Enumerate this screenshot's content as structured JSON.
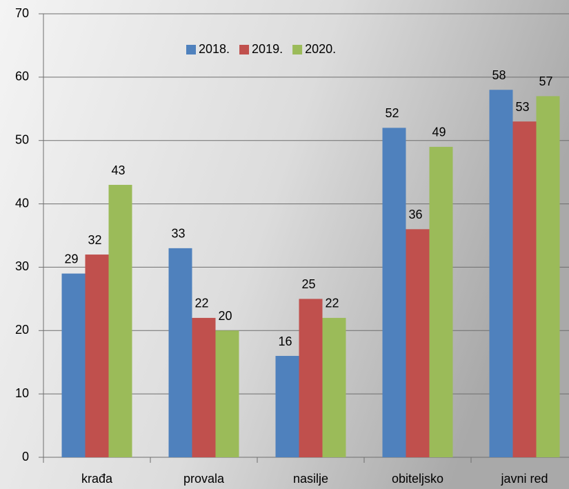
{
  "chart_data": {
    "type": "bar",
    "categories": [
      "krađa",
      "provala",
      "nasilje",
      "obiteljsko",
      "javni red"
    ],
    "series": [
      {
        "name": "2018.",
        "color": "#4f81bd",
        "values": [
          29,
          33,
          16,
          52,
          58
        ]
      },
      {
        "name": "2019.",
        "color": "#c0504d",
        "values": [
          32,
          22,
          25,
          36,
          53
        ]
      },
      {
        "name": "2020.",
        "color": "#9bbb59",
        "values": [
          43,
          20,
          22,
          49,
          57
        ]
      }
    ],
    "ylim": [
      0,
      70
    ],
    "yticks": [
      0,
      10,
      20,
      30,
      40,
      50,
      60,
      70
    ],
    "grid": true,
    "legend": "top"
  }
}
